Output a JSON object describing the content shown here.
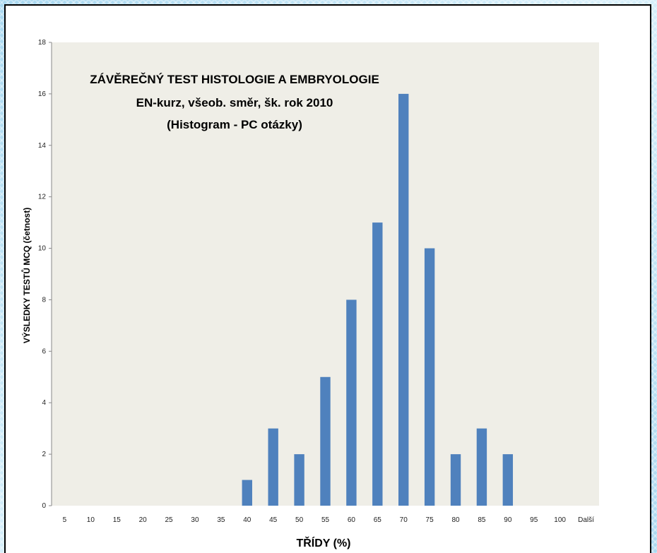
{
  "chart_data": {
    "type": "bar",
    "title_lines": [
      "ZÁVĚREČNÝ TEST HISTOLOGIE A EMBRYOLOGIE",
      "EN-kurz, všeob. směr, šk. rok 2010",
      "(Histogram - PC otázky)"
    ],
    "xlabel": "TŘÍDY  (%)",
    "ylabel": "VÝSLEDKY TESTŮ MCQ   (četnost)",
    "categories": [
      "5",
      "10",
      "15",
      "20",
      "25",
      "30",
      "35",
      "40",
      "45",
      "50",
      "55",
      "60",
      "65",
      "70",
      "75",
      "80",
      "85",
      "90",
      "95",
      "100",
      "Další"
    ],
    "values": [
      0,
      0,
      0,
      0,
      0,
      0,
      0,
      1,
      3,
      2,
      5,
      8,
      11,
      16,
      10,
      2,
      3,
      2,
      0,
      0,
      0
    ],
    "ylim": [
      0,
      18
    ],
    "yticks": [
      "0",
      "2",
      "4",
      "6",
      "8",
      "10",
      "12",
      "14",
      "16",
      "18"
    ],
    "grid": false,
    "legend": "none",
    "colors": {
      "bar": "#4f81bd",
      "plot_area": "#efeee7"
    }
  }
}
